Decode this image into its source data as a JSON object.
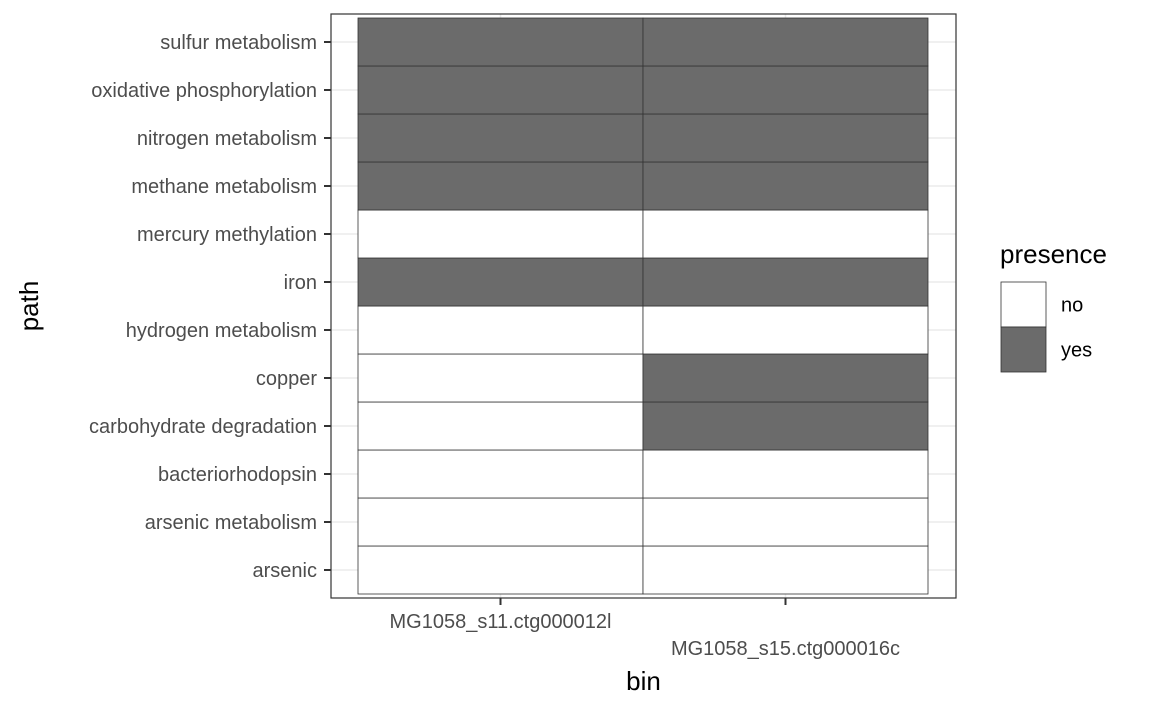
{
  "chart_data": {
    "type": "heatmap",
    "title": "",
    "xlabel": "bin",
    "ylabel": "path",
    "x_categories": [
      "MG1058_s11.ctg000012l",
      "MG1058_s15.ctg000016c"
    ],
    "y_categories": [
      "arsenic",
      "arsenic metabolism",
      "bacteriorhodopsin",
      "carbohydrate degradation",
      "copper",
      "hydrogen metabolism",
      "iron",
      "mercury methylation",
      "methane metabolism",
      "nitrogen metabolism",
      "oxidative phosphorylation",
      "sulfur metabolism"
    ],
    "values": [
      [
        "no",
        "no"
      ],
      [
        "no",
        "no"
      ],
      [
        "no",
        "no"
      ],
      [
        "no",
        "yes"
      ],
      [
        "no",
        "yes"
      ],
      [
        "no",
        "no"
      ],
      [
        "yes",
        "yes"
      ],
      [
        "no",
        "no"
      ],
      [
        "yes",
        "yes"
      ],
      [
        "yes",
        "yes"
      ],
      [
        "yes",
        "yes"
      ],
      [
        "yes",
        "yes"
      ]
    ],
    "legend": {
      "title": "presence",
      "position": "right",
      "items": [
        {
          "label": "no",
          "color": "#ffffff"
        },
        {
          "label": "yes",
          "color": "#6b6b6b"
        }
      ]
    },
    "grid": true
  },
  "colors": {
    "yes_fill": "#6b6b6b",
    "no_fill": "#ffffff",
    "tile_border": "#333333",
    "gridline": "#ebebeb",
    "panel_border": "#333333"
  }
}
